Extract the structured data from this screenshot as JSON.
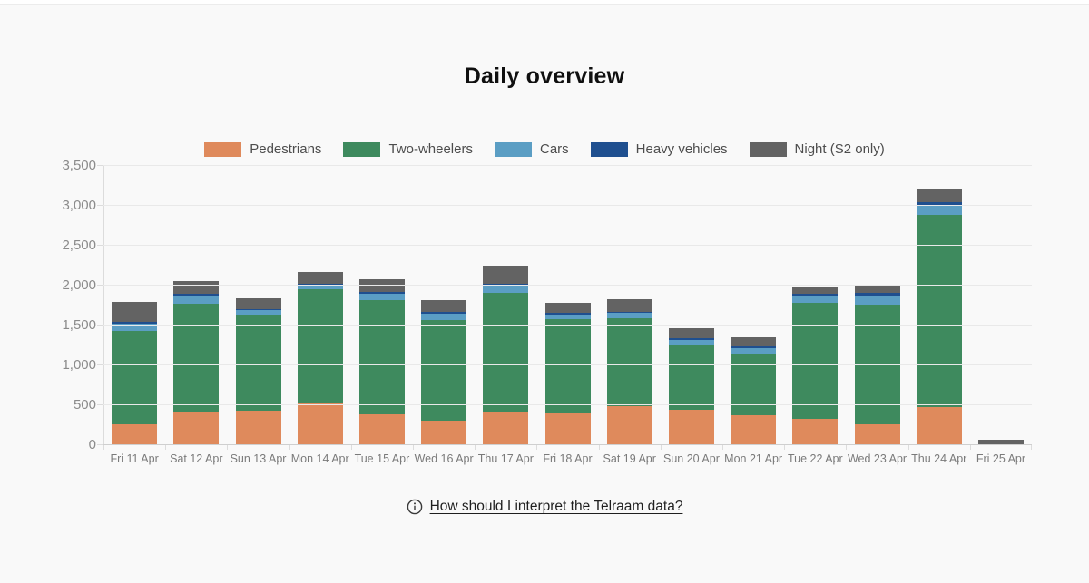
{
  "header": {
    "title": "Daily overview"
  },
  "chart_data": {
    "type": "bar",
    "subtype": "stacked-vertical",
    "title": "Daily overview",
    "xlabel": "",
    "ylabel": "",
    "ylim": [
      0,
      3500
    ],
    "y_tick_step": 500,
    "y_tick_labels": [
      "0",
      "500",
      "1,000",
      "1,500",
      "2,000",
      "2,500",
      "3,000",
      "3,500"
    ],
    "grid": "horizontal",
    "legend_position": "top-center",
    "categories": [
      "Fri 11 Apr",
      "Sat 12 Apr",
      "Sun 13 Apr",
      "Mon 14 Apr",
      "Tue 15 Apr",
      "Wed 16 Apr",
      "Thu 17 Apr",
      "Fri 18 Apr",
      "Sat 19 Apr",
      "Sun 20 Apr",
      "Mon 21 Apr",
      "Tue 22 Apr",
      "Wed 23 Apr",
      "Thu 24 Apr",
      "Fri 25 Apr"
    ],
    "series": [
      {
        "key": "pedestrians",
        "name": "Pedestrians",
        "color": "#df8a5c",
        "values": [
          265,
          425,
          430,
          525,
          385,
          305,
          425,
          395,
          490,
          445,
          370,
          330,
          265,
          480,
          0
        ]
      },
      {
        "key": "two-wheelers",
        "name": "Two-wheelers",
        "color": "#3e8a5e",
        "values": [
          1170,
          1345,
          1205,
          1425,
          1430,
          1265,
          1485,
          1180,
          1100,
          815,
          780,
          1450,
          1500,
          2405,
          0
        ]
      },
      {
        "key": "cars",
        "name": "Cars",
        "color": "#5b9ec4",
        "values": [
          85,
          100,
          55,
          50,
          85,
          75,
          90,
          65,
          65,
          60,
          65,
          85,
          100,
          125,
          0
        ]
      },
      {
        "key": "heavy-vehicles",
        "name": "Heavy vehicles",
        "color": "#1f4f8f",
        "values": [
          30,
          25,
          20,
          25,
          25,
          25,
          25,
          20,
          20,
          25,
          25,
          30,
          40,
          35,
          0
        ]
      },
      {
        "key": "night",
        "name": "Night (S2 only)",
        "color": "#636363",
        "values": [
          245,
          160,
          130,
          145,
          150,
          145,
          220,
          130,
          160,
          125,
          115,
          90,
          90,
          175,
          65
        ]
      }
    ],
    "totals": [
      1795,
      2055,
      1840,
      2170,
      2075,
      1815,
      2245,
      1790,
      1835,
      1470,
      1355,
      1985,
      1995,
      3220,
      65
    ]
  },
  "footer": {
    "info_icon": "info-circle-icon",
    "link_label": "How should I interpret the Telraam data?"
  },
  "colors": {
    "background": "#f9f9f9",
    "grid": "#e9e9e9",
    "baseline": "#cfcfcf",
    "axis": "#dcdcdc",
    "y_tick_label": "#8b8b8b",
    "x_tick_label": "#7a7a7a",
    "title_text": "#101010",
    "legend_text": "#4d4d4d",
    "link_text": "#1f1f1f"
  }
}
